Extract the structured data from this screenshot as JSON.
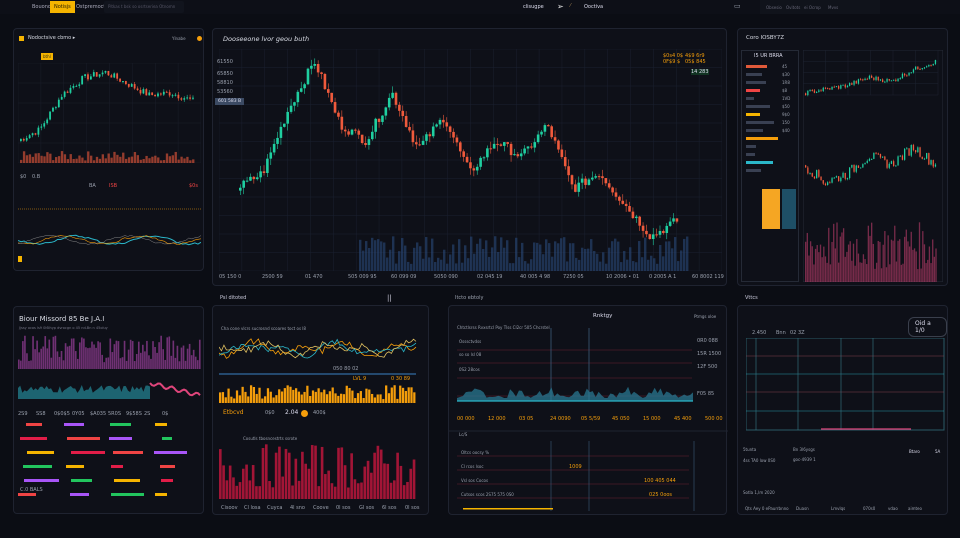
{
  "topbar": {
    "tabs": [
      "Bouono",
      "Notisjs",
      "Ostpremocts"
    ],
    "active_tab": 1,
    "search_placeholder": "Pitkas t bsk so osrtseriea Otnomn",
    "center_label": "clisugpe",
    "center_action": "Ooctiva",
    "right_items": [
      "Obsesio",
      "Ovitots",
      "ei Ocrop",
      "Mvvs"
    ]
  },
  "panel_a": {
    "title": "Nodoctsive cbmo ▸",
    "right_label": "Ylnabe",
    "price_badge": "bthl",
    "row_labels": [
      "$0",
      "0.B",
      "$5",
      "$3"
    ],
    "mid_labels": [
      "BA",
      "ISB",
      "SS8",
      "$0s"
    ]
  },
  "panel_b": {
    "title": "Dooseeone lvor geou buth",
    "y_labels": [
      "61550",
      "65850",
      "58810",
      "53560"
    ],
    "price_tag": "601 583 B",
    "legend": [
      "$0s4 0$",
      "4$9 6r9",
      "0F$9 $",
      "05$ 845"
    ],
    "last_price": "14 283",
    "x_labels": [
      "05 150 0",
      "2500 59",
      "01 470",
      "505 009 95",
      "60 099 09",
      "5050 090",
      "02 045 19",
      "40 005 4 98",
      "7250 05",
      "10 2006 • 01",
      "0 2005 A 1",
      "60 8002 119"
    ]
  },
  "panel_c": {
    "title": "Coro IOSBY7Z",
    "sub": "I5 UR BRRA",
    "table_labels": [
      "45",
      "$30",
      "1R8",
      "$8",
      "1VD",
      "$50",
      "9$0",
      "150",
      "$40"
    ]
  },
  "sections": {
    "e": "Psl ditoted",
    "e_mark": "||",
    "f": "Itcto ebtoly",
    "g": "Vttcs"
  },
  "panel_d": {
    "title": "Biour Missord 85 Be J.A.I",
    "subtitle": "Jjssy ocos ls9 0l6lhyp dvrocgn o 45 nd-Bn n 45oluy",
    "row_labels": [
      "2S9",
      "SS8",
      "0$0$5",
      "0Y05",
      "$A035",
      "5R0S",
      "9$58S",
      "2S",
      "0$"
    ],
    "foot": "C.0 BALS"
  },
  "panel_e": {
    "header": "Cha cone vlcrs sucrosnd scoares toct os l8",
    "values": [
      "1080",
      "050 80 02",
      "LVL 9",
      "0 30 89"
    ],
    "metrics": [
      "Etbcvd",
      "0$0",
      "2.04",
      "400$"
    ],
    "subtitle": "Cosutls tbosncestrts ssrote",
    "x_labels": [
      "Cisoov",
      "Cl losa",
      "Cuyca",
      "4l sno",
      "Coove",
      "0l sos",
      "Gl sos",
      "6l sos",
      "0l sos"
    ]
  },
  "panel_f": {
    "title": "Rnktgy",
    "right": "Ptmgs oloe",
    "header": "Chtctlsrss Rvxsrtcl Poy Tlss   Cl2cr 505 Chcrstel",
    "rows": [
      "Osssctvdss",
      "so so lsl 08",
      "0S2 28cos"
    ],
    "right_vals": [
      "0R0 088",
      "15R 1500",
      "12F 500",
      "F05 85"
    ],
    "x_labels": [
      "00 000",
      "12 000",
      "03 05",
      "24 0090",
      "05 5/59",
      "45 050",
      "15 000",
      "45 400",
      "500 00"
    ],
    "foot": "Lc/S",
    "bottom_rows": [
      "Oltcs oocsy %",
      "Cl rcos lsoc",
      "Vsl sos Cocos",
      "Cutsos scos 2S75 575 0S0"
    ],
    "bottom_vals": [
      "1009",
      "100 405 044",
      "025 0oos"
    ]
  },
  "panel_g": {
    "button": "Oid a 1/0",
    "legend": [
      "2.450",
      "Bnn",
      "02 3Z"
    ],
    "y_labels": [
      "$5",
      "01",
      "50",
      "70"
    ],
    "info": [
      "5tunta",
      "Bn 3l6ysgs",
      "4ss TA0 low 0S0",
      "goc-4939 1",
      "Sotla 1,lm 2020"
    ],
    "cols": [
      "Btaro",
      "5A"
    ],
    "footer": [
      "Qts Aey 0 ePaurrbnno",
      "Duasn",
      "Lmvlqs",
      "070s0",
      "vdao",
      "aimteo"
    ]
  },
  "colors": {
    "up": "#1fcfa0",
    "down": "#ef5a3c",
    "accent": "#f5b400",
    "pink": "#e0457b",
    "teal": "#2bb7c9",
    "crimson": "#b3163a"
  }
}
